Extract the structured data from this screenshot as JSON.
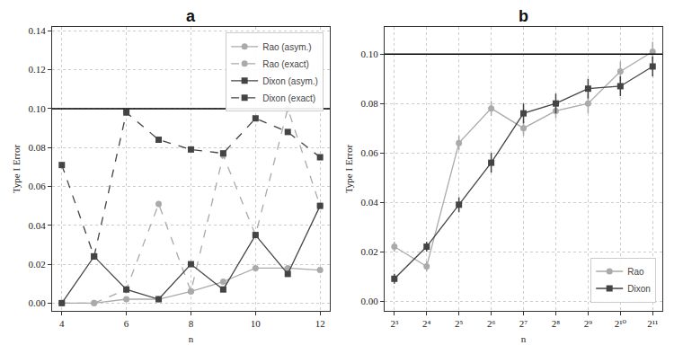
{
  "chart_data": [
    {
      "type": "line",
      "title": "a",
      "xlabel": "n",
      "ylabel": "Type I Error",
      "x": [
        4,
        5,
        6,
        7,
        8,
        9,
        10,
        11,
        12
      ],
      "series": [
        {
          "name": "Rao (asym.)",
          "color": "#aaaaaa",
          "marker": "circle",
          "line_style": "solid",
          "values": [
            0,
            0,
            0.002,
            0.002,
            0.006,
            0.011,
            0.018,
            0.018,
            0.017
          ]
        },
        {
          "name": "Rao (exact)",
          "color": "#aaaaaa",
          "marker": "circle",
          "line_style": "dashed",
          "values": [
            0,
            0,
            0.007,
            0.051,
            0.006,
            0.076,
            0.035,
            0.1,
            0.05
          ]
        },
        {
          "name": "Dixon (asym.)",
          "color": "#444444",
          "marker": "square",
          "line_style": "solid",
          "values": [
            0,
            0.024,
            0.007,
            0.002,
            0.02,
            0.007,
            0.035,
            0.015,
            0.05
          ]
        },
        {
          "name": "Dixon (exact)",
          "color": "#444444",
          "marker": "square",
          "line_style": "dashed",
          "values": [
            0.071,
            0.024,
            0.098,
            0.084,
            0.079,
            0.077,
            0.095,
            0.088,
            0.075
          ]
        }
      ],
      "xlim": [
        3.7,
        12.3
      ],
      "xticks": [
        4,
        6,
        8,
        10,
        12
      ],
      "ylim": [
        -0.004,
        0.142
      ],
      "yticks": [
        {
          "value": 0,
          "label": "0.00"
        },
        {
          "value": 0.02,
          "label": "0.02"
        },
        {
          "value": 0.04,
          "label": "0.04"
        },
        {
          "value": 0.06,
          "label": "0.06"
        },
        {
          "value": 0.08,
          "label": "0.08"
        },
        {
          "value": 0.1,
          "label": "0.10"
        },
        {
          "value": 0.12,
          "label": "0.12"
        },
        {
          "value": 0.14,
          "label": "0.14"
        }
      ],
      "reference_line": 0.1,
      "grid": true,
      "legend": "top right"
    },
    {
      "type": "line",
      "title": "b",
      "xlabel": "n",
      "ylabel": "Type I Error",
      "log": "x",
      "x": [
        8,
        16,
        32,
        64,
        128,
        256,
        512,
        1024,
        2048
      ],
      "series": [
        {
          "name": "Rao",
          "color": "#aaaaaa",
          "marker": "circle",
          "line_style": "solid",
          "values": [
            0.022,
            0.014,
            0.064,
            0.078,
            0.07,
            0.077,
            0.08,
            0.093,
            0.101
          ],
          "errors": [
            0.002,
            0.002,
            0.003,
            0.003,
            0.003,
            0.003,
            0.004,
            0.004,
            0.004
          ]
        },
        {
          "name": "Dixon",
          "color": "#444444",
          "marker": "square",
          "line_style": "solid",
          "values": [
            0.009,
            0.022,
            0.039,
            0.056,
            0.076,
            0.08,
            0.086,
            0.087,
            0.095
          ],
          "errors": [
            0.002,
            0.002,
            0.003,
            0.004,
            0.004,
            0.004,
            0.004,
            0.004,
            0.004
          ]
        }
      ],
      "xlim": [
        6.5,
        2520
      ],
      "xticks": [
        {
          "value": 8,
          "label": "2³"
        },
        {
          "value": 16,
          "label": "2⁴"
        },
        {
          "value": 32,
          "label": "2⁵"
        },
        {
          "value": 64,
          "label": "2⁶"
        },
        {
          "value": 128,
          "label": "2⁷"
        },
        {
          "value": 256,
          "label": "2⁸"
        },
        {
          "value": 512,
          "label": "2⁹"
        },
        {
          "value": 1024,
          "label": "2¹⁰"
        },
        {
          "value": 2048,
          "label": "2¹¹"
        }
      ],
      "ylim": [
        -0.004,
        0.111
      ],
      "yticks": [
        {
          "value": 0,
          "label": "0.00"
        },
        {
          "value": 0.02,
          "label": "0.02"
        },
        {
          "value": 0.04,
          "label": "0.04"
        },
        {
          "value": 0.06,
          "label": "0.06"
        },
        {
          "value": 0.08,
          "label": "0.08"
        },
        {
          "value": 0.1,
          "label": "0.10"
        }
      ],
      "reference_line": 0.1,
      "grid": true,
      "legend": "bottom right"
    }
  ]
}
